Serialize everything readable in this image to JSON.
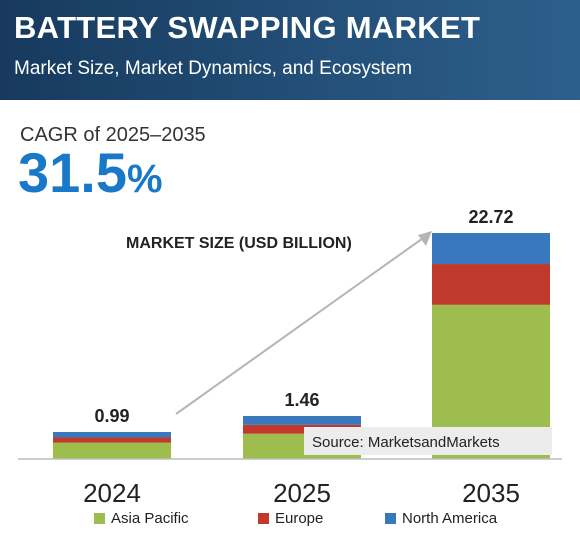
{
  "header": {
    "title": "BATTERY SWAPPING MARKET",
    "subtitle": "Market Size, Market Dynamics, and Ecosystem"
  },
  "cagr": {
    "label": "CAGR of 2025–2035",
    "value": "31.5",
    "unit": "%"
  },
  "source": "Source: MarketsandMarkets",
  "colors": {
    "asia_pacific": "#9dbe4e",
    "europe": "#c0392b",
    "north_america": "#3a78be",
    "header": "#1e4670",
    "accent": "#1a78c8"
  },
  "chart_data": {
    "type": "bar",
    "stacked": true,
    "ylabel": "MARKET SIZE (USD BILLION)",
    "categories": [
      "2024",
      "2025",
      "2035"
    ],
    "totals": [
      0.99,
      1.46,
      22.72
    ],
    "series": [
      {
        "name": "Asia Pacific",
        "color": "#9dbe4e",
        "values": [
          0.6,
          0.86,
          15.5
        ]
      },
      {
        "name": "Europe",
        "color": "#c0392b",
        "values": [
          0.19,
          0.3,
          4.1
        ]
      },
      {
        "name": "North America",
        "color": "#3a78be",
        "values": [
          0.2,
          0.3,
          3.12
        ]
      }
    ],
    "legend_position": "bottom",
    "grid": false
  }
}
